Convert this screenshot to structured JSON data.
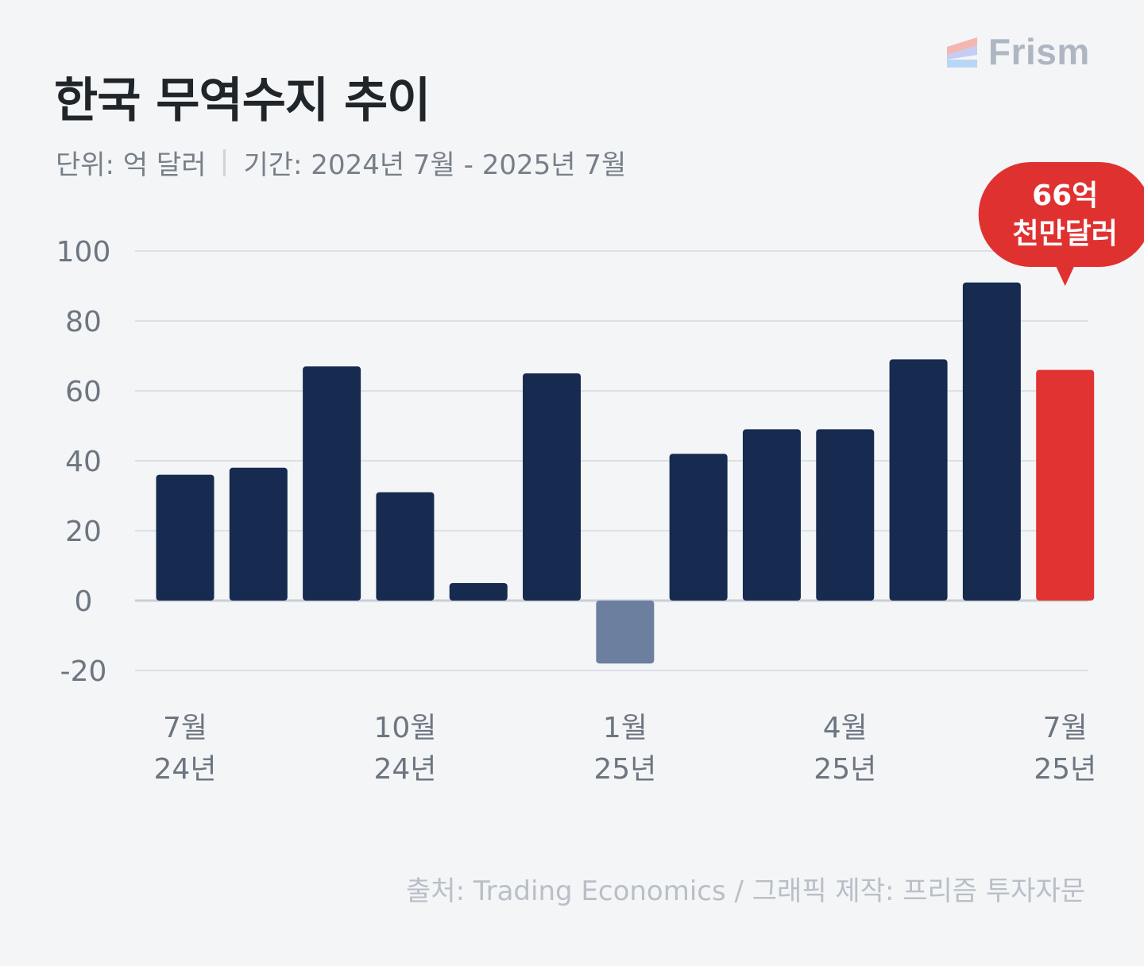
{
  "header": {
    "title": "한국 무역수지 추이",
    "unit": "단위: 억 달러",
    "period": "기간: 2024년 7월 - 2025년 7월"
  },
  "logo": {
    "text": "Frism"
  },
  "callout": {
    "line1": "66억",
    "line2": "천만달러"
  },
  "source": "출처: Trading Economics / 그래픽 제작: 프리즘 투자자문",
  "colors": {
    "bar": "#172a50",
    "negative_bar": "#6d7f9f",
    "highlight_bar": "#e23333",
    "grid": "#d6dade",
    "axis_text": "#6d7580",
    "callout_bg": "#e03131"
  },
  "chart_data": {
    "type": "bar",
    "ylim": [
      -20,
      100
    ],
    "yticks": [
      100,
      80,
      60,
      40,
      20,
      0,
      -20
    ],
    "grid": true,
    "series": [
      {
        "values": [
          36,
          38,
          67,
          31,
          5,
          65,
          -18,
          42,
          49,
          49,
          69,
          91,
          66
        ]
      }
    ],
    "highlight_index": 12,
    "x_tick_labels": [
      {
        "index": 0,
        "line1": "7월",
        "line2": "24년"
      },
      {
        "index": 3,
        "line1": "10월",
        "line2": "24년"
      },
      {
        "index": 6,
        "line1": "1월",
        "line2": "25년"
      },
      {
        "index": 9,
        "line1": "4월",
        "line2": "25년"
      },
      {
        "index": 12,
        "line1": "7월",
        "line2": "25년"
      }
    ]
  }
}
